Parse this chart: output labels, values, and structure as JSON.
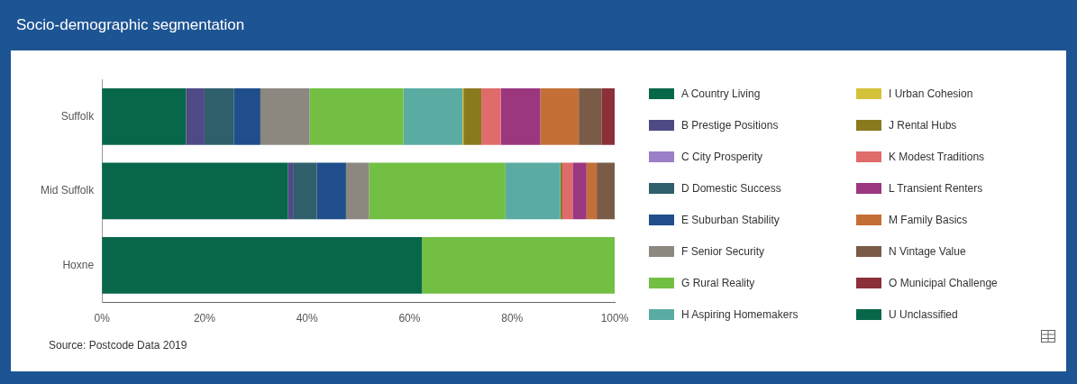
{
  "chart_data": {
    "type": "bar",
    "orientation": "horizontal",
    "stacked": true,
    "title": "Socio-demographic segmentation",
    "annotations": [
      "Source: Postcode Data 2019"
    ],
    "categories": [
      "Suffolk",
      "Mid Suffolk",
      "Hoxne"
    ],
    "xlim": [
      0,
      100
    ],
    "xticks": [
      {
        "value": 0,
        "label": "0%"
      },
      {
        "value": 20,
        "label": "20%"
      },
      {
        "value": 40,
        "label": "40%"
      },
      {
        "value": 60,
        "label": "60%"
      },
      {
        "value": 80,
        "label": "80%"
      },
      {
        "value": 100,
        "label": "100%"
      }
    ],
    "grid": false,
    "legend": "right",
    "series": [
      {
        "name": "A Country Living",
        "color": "#08674a",
        "values": [
          16.4,
          36.3,
          62.4
        ]
      },
      {
        "name": "B Prestige Positions",
        "color": "#4f4a86",
        "values": [
          3.6,
          1.1,
          0
        ]
      },
      {
        "name": "C City Prosperity",
        "color": "#9b7fc7",
        "values": [
          0,
          0,
          0
        ]
      },
      {
        "name": "D Domestic Success",
        "color": "#2f5f6b",
        "values": [
          5.7,
          4.5,
          0
        ]
      },
      {
        "name": "E Suburban Stability",
        "color": "#1f4e8a",
        "values": [
          5.2,
          5.7,
          0
        ]
      },
      {
        "name": "F Senior Security",
        "color": "#8c8880",
        "values": [
          9.6,
          4.5,
          0
        ]
      },
      {
        "name": "G Rural Reality",
        "color": "#72bf44",
        "values": [
          18.3,
          26.6,
          37.6
        ]
      },
      {
        "name": "H Aspiring Homemakers",
        "color": "#5aaca3",
        "values": [
          11.5,
          10.7,
          0
        ]
      },
      {
        "name": "I Urban Cohesion",
        "color": "#d4c23b",
        "values": [
          0.2,
          0,
          0
        ]
      },
      {
        "name": "J Rental Hubs",
        "color": "#8a7a1e",
        "values": [
          3.5,
          0.4,
          0
        ]
      },
      {
        "name": "K Modest Traditions",
        "color": "#e06b6b",
        "values": [
          3.8,
          2.0,
          0
        ]
      },
      {
        "name": "L Transient Renters",
        "color": "#9a377f",
        "values": [
          7.7,
          2.7,
          0
        ]
      },
      {
        "name": "M Family Basics",
        "color": "#c46f37",
        "values": [
          7.5,
          2.0,
          0
        ]
      },
      {
        "name": "N Vintage Value",
        "color": "#7a5b48",
        "values": [
          4.5,
          3.5,
          0
        ]
      },
      {
        "name": "O Municipal Challenge",
        "color": "#8b3038",
        "values": [
          2.5,
          0,
          0
        ]
      },
      {
        "name": "U Unclassified",
        "color": "#08674a",
        "values": [
          0,
          0,
          0
        ]
      }
    ]
  }
}
